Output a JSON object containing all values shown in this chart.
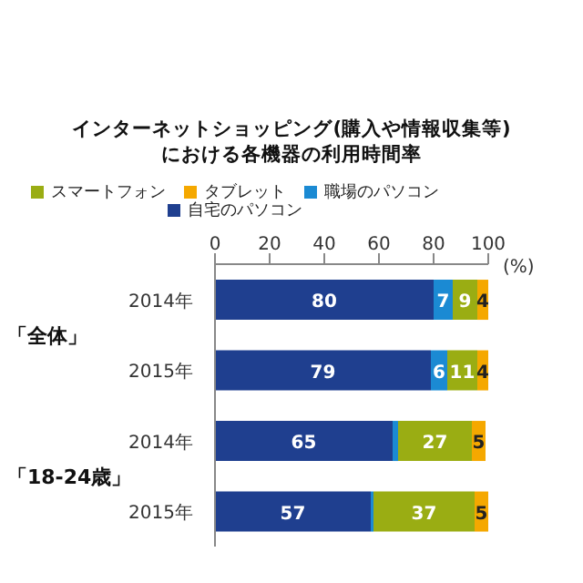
{
  "chart_data": {
    "type": "bar",
    "orientation": "horizontal",
    "stacked": true,
    "title": "インターネットショッピング(購入や情報収集等)\nにおける各機器の利用時間率",
    "xlabel": "(%)",
    "categories": [
      "2014年",
      "2015年",
      "2014年",
      "2015年"
    ],
    "series": [
      {
        "name": "自宅のパソコン",
        "color": "#1f3f8f",
        "values": [
          80,
          79,
          65,
          57
        ],
        "value_labels": [
          "80",
          "79",
          "65",
          "57"
        ]
      },
      {
        "name": "職場のパソコン",
        "color": "#1b8ad3",
        "values": [
          7,
          6,
          2,
          1
        ],
        "value_labels": [
          "7",
          "6",
          null,
          null
        ]
      },
      {
        "name": "スマートフォン",
        "color": "#9aad13",
        "values": [
          9,
          11,
          27,
          37
        ],
        "value_labels": [
          "9",
          "11",
          "27",
          "37"
        ]
      },
      {
        "name": "タブレット",
        "color": "#f5a800",
        "values": [
          4,
          4,
          5,
          5
        ],
        "value_labels": [
          "4",
          "4",
          "5",
          "5"
        ]
      }
    ],
    "xlim": [
      0,
      100
    ],
    "xticks": [
      0,
      20,
      40,
      60,
      80,
      100
    ],
    "legend": "top",
    "annotations": [
      "「全体」",
      "「18-24歳」"
    ]
  }
}
